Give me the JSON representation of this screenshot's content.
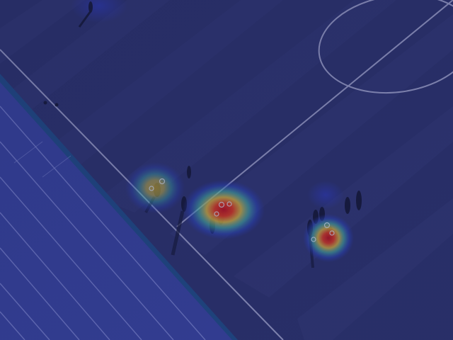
{
  "image": {
    "description_kind": "aerial photo with attention heatmap overlay",
    "colors": {
      "field_base": "#2d3470",
      "field_stripe_dark": "#28306a",
      "field_stripe_light": "#363d7c",
      "track": "#3a47a8",
      "track_lane": "#8f98e6",
      "track_edge": "#1f4f8c",
      "line_white": "#c9ccf0",
      "heat_cold": "#2b3bd6",
      "heat_mid": "#39d0c0",
      "heat_warm": "#f0d03a",
      "heat_hot": "#e0201c"
    },
    "heat_spots": [
      {
        "name": "heat-spot-left",
        "intensity": 0.7
      },
      {
        "name": "heat-spot-center",
        "intensity": 1.0
      },
      {
        "name": "heat-spot-right",
        "intensity": 0.95
      }
    ]
  }
}
